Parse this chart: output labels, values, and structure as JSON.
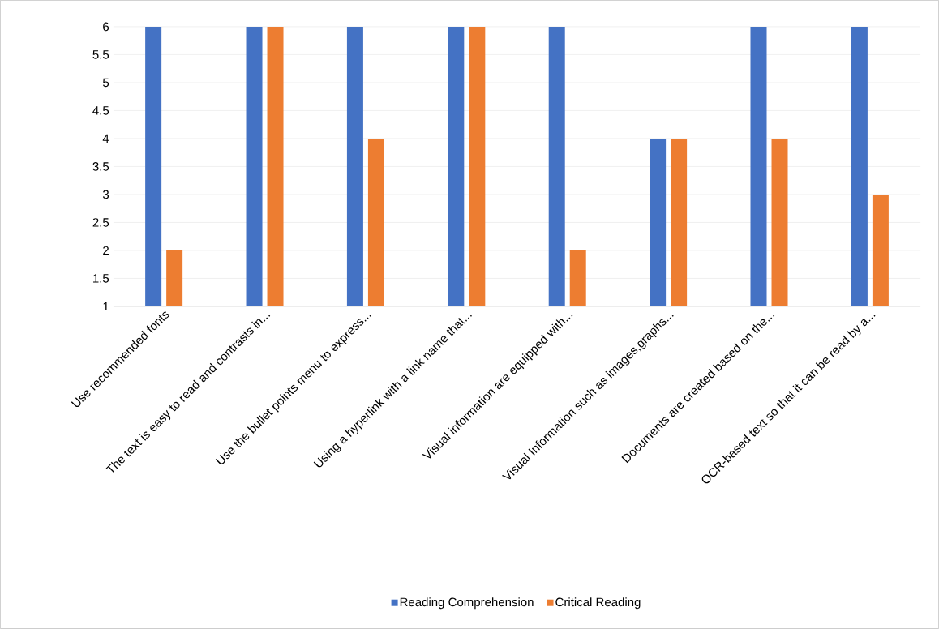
{
  "chart_data": {
    "type": "bar",
    "categories": [
      "Use recommended fonts",
      "The text is easy to read and contrasts in...",
      "Use the bullet points menu to express...",
      "Using a hyperlink with a link name that...",
      "Visual information are equipped with...",
      "Visual Information such as images,graphs...",
      "Documents are created based on the...",
      "OCR-based text so that it can be read by a..."
    ],
    "series": [
      {
        "name": "Reading Comprehension",
        "color": "#4472c4",
        "values": [
          6,
          6,
          6,
          6,
          6,
          4,
          6,
          6
        ]
      },
      {
        "name": "Critical Reading",
        "color": "#ed7d31",
        "values": [
          2,
          6,
          4,
          6,
          2,
          4,
          4,
          3
        ]
      }
    ],
    "ylim": [
      1,
      6
    ],
    "yticks": [
      1,
      1.5,
      2,
      2.5,
      3,
      3.5,
      4,
      4.5,
      5,
      5.5,
      6
    ],
    "grid": "y",
    "legend": "bottom"
  }
}
